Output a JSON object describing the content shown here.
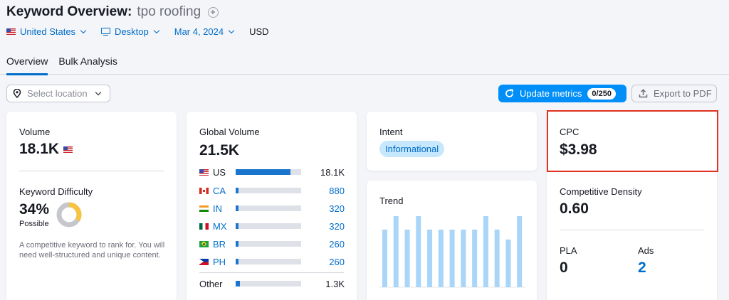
{
  "header": {
    "title": "Keyword Overview:",
    "keyword": "tpo roofing",
    "filters": {
      "country": "United States",
      "device": "Desktop",
      "date": "Mar 4, 2024",
      "currency": "USD"
    },
    "tabs": [
      {
        "label": "Overview",
        "active": true
      },
      {
        "label": "Bulk Analysis",
        "active": false
      }
    ]
  },
  "toolbar": {
    "location_placeholder": "Select location",
    "update_label": "Update metrics",
    "update_badge": "0/250",
    "export_label": "Export to PDF"
  },
  "volume": {
    "label": "Volume",
    "value": "18.1K"
  },
  "difficulty": {
    "label": "Keyword Difficulty",
    "value": "34%",
    "level": "Possible",
    "percent": 34,
    "description": "A competitive keyword to rank for. You will need well-structured and unique content."
  },
  "global": {
    "label": "Global Volume",
    "value": "21.5K",
    "rows": [
      {
        "code": "US",
        "value": "18.1K",
        "share": 0.84
      },
      {
        "code": "CA",
        "value": "880",
        "share": 0.04
      },
      {
        "code": "IN",
        "value": "320",
        "share": 0.015
      },
      {
        "code": "MX",
        "value": "320",
        "share": 0.015
      },
      {
        "code": "BR",
        "value": "260",
        "share": 0.012
      },
      {
        "code": "PH",
        "value": "260",
        "share": 0.012
      }
    ],
    "other": {
      "label": "Other",
      "value": "1.3K",
      "share": 0.06
    }
  },
  "intent": {
    "label": "Intent",
    "value": "Informational"
  },
  "trend": {
    "label": "Trend",
    "values": [
      0.81,
      1.0,
      0.81,
      1.0,
      0.81,
      0.81,
      0.81,
      0.81,
      0.81,
      1.0,
      0.81,
      0.67,
      1.0
    ],
    "bar_color": "#a8d5f8"
  },
  "cpc": {
    "label": "CPC",
    "value": "$3.98"
  },
  "density": {
    "label": "Competitive Density",
    "value": "0.60"
  },
  "pla": {
    "label": "PLA",
    "value": "0"
  },
  "ads": {
    "label": "Ads",
    "value": "2"
  },
  "colors": {
    "accent": "#006dca",
    "button": "#008ff8",
    "highlight": "#e0321f",
    "kd_ring": "#f7c442",
    "kd_track": "#c5c7cd"
  }
}
